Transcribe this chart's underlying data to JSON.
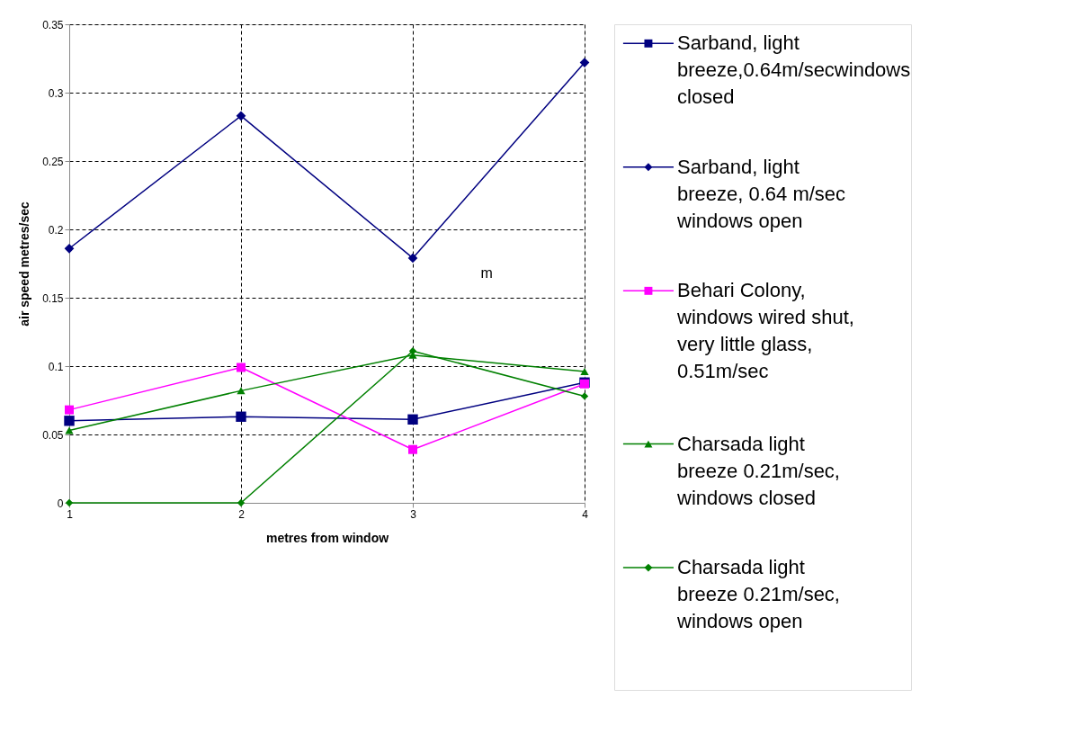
{
  "chart_data": {
    "type": "line",
    "xlabel": "metres from window",
    "ylabel": "air speed metres/sec",
    "x": [
      1,
      2,
      3,
      4
    ],
    "xlim": [
      1,
      4
    ],
    "xticks": [
      1,
      2,
      3,
      4
    ],
    "ylim": [
      0,
      0.35
    ],
    "yticks": [
      0,
      0.05,
      0.1,
      0.15,
      0.2,
      0.25,
      0.3,
      0.35
    ],
    "grid": true,
    "legend": "right",
    "line_style": "solid",
    "series": [
      {
        "name": "Sarband, light breeze,0.64m/secwindows closed",
        "color": "#000080",
        "marker": "square",
        "values": [
          0.06,
          0.063,
          0.061,
          0.088
        ]
      },
      {
        "name": "Sarband, light breeze, 0.64 m/sec windows open",
        "color": "#000080",
        "marker": "diamond",
        "values": [
          0.186,
          0.283,
          0.179,
          0.322
        ]
      },
      {
        "name": "Behari Colony, windows wired shut, very little glass, 0.51m/sec",
        "color": "#ff00ff",
        "marker": "square",
        "values": [
          0.068,
          0.099,
          0.039,
          0.087
        ]
      },
      {
        "name": "Charsada light breeze 0.21m/sec, windows closed",
        "color": "#008000",
        "marker": "triangle",
        "values": [
          0.053,
          0.082,
          0.108,
          0.096
        ]
      },
      {
        "name": "Charsada light breeze 0.21m/sec, windows open",
        "color": "#008000",
        "marker": "diamond",
        "values": [
          0,
          0,
          0.111,
          0.078
        ]
      }
    ],
    "annotations": [
      "m"
    ]
  }
}
